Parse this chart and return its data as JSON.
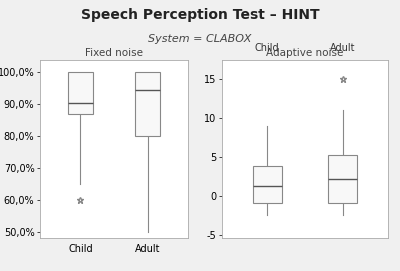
{
  "title": "Speech Perception Test – HINT",
  "subtitle": "System = CLABOX",
  "left_panel_title": "Fixed noise",
  "right_panel_title": "Adaptive noise",
  "left_categories": [
    "Child",
    "Adult"
  ],
  "right_cat_labels_top": [
    "Child",
    "Adult"
  ],
  "left_ylim": [
    0.48,
    1.04
  ],
  "right_ylim": [
    -5.5,
    17.5
  ],
  "left_yticks": [
    0.5,
    0.6,
    0.7,
    0.8,
    0.9,
    1.0
  ],
  "left_ytick_labels": [
    "50,0%",
    "60,0%",
    "70,0%",
    "80,0%",
    "90,0%",
    "100,0%"
  ],
  "right_yticks": [
    -5,
    0,
    5,
    10,
    15
  ],
  "right_ytick_labels": [
    "-5",
    "0",
    "5",
    "10",
    "15"
  ],
  "left_child": {
    "q1": 0.87,
    "median": 0.905,
    "q3": 1.0,
    "whisker_low": 0.65,
    "whisker_high": 1.0,
    "outliers": [
      0.6
    ]
  },
  "left_adult": {
    "q1": 0.8,
    "median": 0.945,
    "q3": 1.0,
    "whisker_low": 0.5,
    "whisker_high": 1.0,
    "outliers": []
  },
  "right_child": {
    "q1": -1.0,
    "median": 1.2,
    "q3": 3.8,
    "whisker_low": -2.5,
    "whisker_high": 9.0,
    "outliers": []
  },
  "right_adult": {
    "q1": -1.0,
    "median": 2.2,
    "q3": 5.2,
    "whisker_low": -2.5,
    "whisker_high": 11.0,
    "outliers": [
      15.0
    ]
  },
  "box_facecolor": "#f8f8f8",
  "box_edge_color": "#888888",
  "whisker_color": "#888888",
  "median_color": "#555555",
  "outlier_color": "#888888",
  "background_color": "#f0f0f0",
  "panel_bg": "#ffffff",
  "spine_color": "#aaaaaa",
  "title_fontsize": 10,
  "subtitle_fontsize": 8,
  "panel_title_fontsize": 7.5,
  "tick_fontsize": 7,
  "cat_label_fontsize": 7
}
